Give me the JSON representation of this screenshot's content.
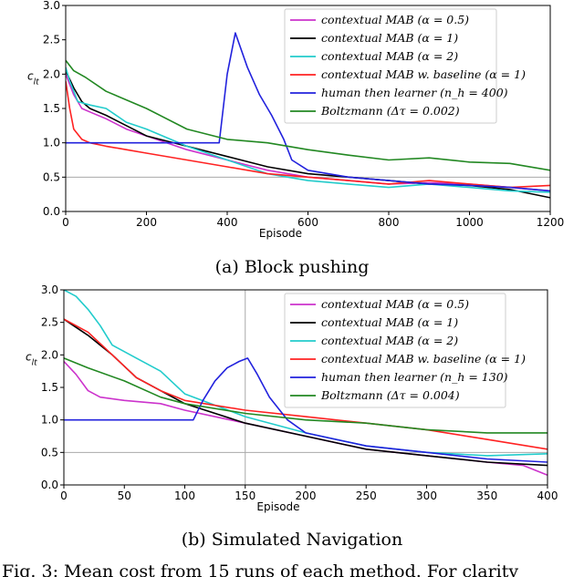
{
  "figure_caption": "Fig. 3: Mean cost from 15 runs of each method. For clarity",
  "chart_data": [
    {
      "type": "line",
      "caption": "(a) Block pushing",
      "xlabel": "Episode",
      "ylabel": "c",
      "ylabel_sub": "lt",
      "xlim": [
        0,
        1200
      ],
      "ylim": [
        0,
        3.0
      ],
      "xticks": [
        0,
        200,
        400,
        600,
        800,
        1000,
        1200
      ],
      "yticks": [
        0.0,
        0.5,
        1.0,
        1.5,
        2.0,
        2.5,
        3.0
      ],
      "xtick_labels": [
        "0",
        "200",
        "400",
        "600",
        "800",
        "1000",
        "1200"
      ],
      "ytick_labels": [
        "0.0",
        "0.5",
        "1.0",
        "1.5",
        "2.0",
        "2.5",
        "3.0"
      ],
      "legend_position": "top-right",
      "series": [
        {
          "name": "contextual MAB (α = 0.5)",
          "color": "#cc33cc",
          "x": [
            0,
            20,
            40,
            60,
            100,
            150,
            200,
            300,
            400,
            500,
            600,
            700,
            800,
            900,
            1000,
            1100,
            1200
          ],
          "y": [
            2.0,
            1.7,
            1.5,
            1.45,
            1.35,
            1.2,
            1.1,
            0.9,
            0.75,
            0.6,
            0.5,
            0.45,
            0.4,
            0.42,
            0.4,
            0.35,
            0.3
          ]
        },
        {
          "name": "contextual MAB (α = 1)",
          "color": "#000000",
          "x": [
            0,
            20,
            40,
            60,
            100,
            150,
            200,
            300,
            400,
            500,
            600,
            700,
            800,
            900,
            1000,
            1100,
            1200
          ],
          "y": [
            2.05,
            1.8,
            1.6,
            1.5,
            1.4,
            1.25,
            1.1,
            0.95,
            0.8,
            0.65,
            0.55,
            0.5,
            0.45,
            0.4,
            0.38,
            0.32,
            0.2
          ]
        },
        {
          "name": "contextual MAB (α = 2)",
          "color": "#22cccc",
          "x": [
            0,
            10,
            30,
            60,
            100,
            150,
            200,
            300,
            400,
            500,
            600,
            700,
            800,
            900,
            1000,
            1100,
            1200
          ],
          "y": [
            2.1,
            1.9,
            1.6,
            1.55,
            1.5,
            1.3,
            1.2,
            0.95,
            0.75,
            0.55,
            0.45,
            0.4,
            0.35,
            0.4,
            0.35,
            0.3,
            0.28
          ]
        },
        {
          "name": "contextual MAB w. baseline (α = 1)",
          "color": "#ff2222",
          "x": [
            0,
            10,
            20,
            40,
            60,
            100,
            150,
            200,
            300,
            400,
            500,
            600,
            700,
            800,
            900,
            1000,
            1100,
            1200
          ],
          "y": [
            1.9,
            1.5,
            1.2,
            1.05,
            1.0,
            0.95,
            0.9,
            0.85,
            0.75,
            0.65,
            0.55,
            0.5,
            0.45,
            0.4,
            0.45,
            0.4,
            0.35,
            0.38
          ]
        },
        {
          "name": "human then learner (n_h = 400)",
          "color": "#2222dd",
          "x": [
            0,
            380,
            400,
            420,
            450,
            480,
            510,
            540,
            560,
            600,
            700,
            800,
            900,
            1000,
            1100,
            1200
          ],
          "y": [
            1.0,
            1.0,
            2.0,
            2.6,
            2.1,
            1.7,
            1.4,
            1.05,
            0.75,
            0.6,
            0.5,
            0.45,
            0.4,
            0.38,
            0.35,
            0.3
          ]
        },
        {
          "name": "Boltzmann (Δτ = 0.002)",
          "color": "#228822",
          "x": [
            0,
            20,
            50,
            100,
            200,
            300,
            400,
            500,
            600,
            700,
            800,
            900,
            1000,
            1100,
            1200
          ],
          "y": [
            2.2,
            2.05,
            1.95,
            1.75,
            1.5,
            1.2,
            1.05,
            1.0,
            0.9,
            0.82,
            0.75,
            0.78,
            0.72,
            0.7,
            0.6
          ]
        }
      ]
    },
    {
      "type": "line",
      "caption": "(b) Simulated Navigation",
      "xlabel": "Episode",
      "ylabel": "c",
      "ylabel_sub": "lt",
      "xlim": [
        0,
        400
      ],
      "ylim": [
        0,
        3.0
      ],
      "xticks": [
        0,
        50,
        100,
        150,
        200,
        250,
        300,
        350,
        400
      ],
      "yticks": [
        0.0,
        0.5,
        1.0,
        1.5,
        2.0,
        2.5,
        3.0
      ],
      "xtick_labels": [
        "0",
        "50",
        "100",
        "150",
        "200",
        "250",
        "300",
        "350",
        "400"
      ],
      "ytick_labels": [
        "0.0",
        "0.5",
        "1.0",
        "1.5",
        "2.0",
        "2.5",
        "3.0"
      ],
      "legend_position": "top-right",
      "series": [
        {
          "name": "contextual MAB (α = 0.5)",
          "color": "#cc33cc",
          "x": [
            0,
            10,
            20,
            30,
            50,
            80,
            100,
            150,
            200,
            250,
            300,
            350,
            380,
            400
          ],
          "y": [
            1.9,
            1.7,
            1.45,
            1.35,
            1.3,
            1.25,
            1.15,
            0.95,
            0.75,
            0.55,
            0.45,
            0.35,
            0.3,
            0.15
          ]
        },
        {
          "name": "contextual MAB (α = 1)",
          "color": "#000000",
          "x": [
            0,
            20,
            40,
            60,
            80,
            100,
            150,
            200,
            250,
            300,
            350,
            400
          ],
          "y": [
            2.55,
            2.3,
            2.0,
            1.65,
            1.45,
            1.25,
            0.95,
            0.75,
            0.55,
            0.45,
            0.35,
            0.3
          ]
        },
        {
          "name": "contextual MAB (α = 2)",
          "color": "#22cccc",
          "x": [
            0,
            10,
            20,
            30,
            40,
            60,
            80,
            100,
            150,
            200,
            250,
            300,
            350,
            400
          ],
          "y": [
            3.0,
            2.9,
            2.7,
            2.45,
            2.15,
            1.95,
            1.75,
            1.4,
            1.05,
            0.8,
            0.6,
            0.5,
            0.45,
            0.48
          ]
        },
        {
          "name": "contextual MAB w. baseline (α = 1)",
          "color": "#ff2222",
          "x": [
            0,
            20,
            40,
            60,
            80,
            100,
            150,
            200,
            250,
            300,
            350,
            400
          ],
          "y": [
            2.55,
            2.35,
            2.0,
            1.65,
            1.45,
            1.3,
            1.15,
            1.05,
            0.95,
            0.85,
            0.7,
            0.55
          ]
        },
        {
          "name": "human then learner (n_h = 130)",
          "color": "#2222dd",
          "x": [
            0,
            107,
            115,
            125,
            135,
            145,
            152,
            160,
            170,
            185,
            200,
            250,
            300,
            350,
            400
          ],
          "y": [
            1.0,
            1.0,
            1.3,
            1.6,
            1.8,
            1.9,
            1.95,
            1.7,
            1.35,
            1.0,
            0.8,
            0.6,
            0.5,
            0.4,
            0.35
          ]
        },
        {
          "name": "Boltzmann (Δτ = 0.004)",
          "color": "#228822",
          "x": [
            0,
            20,
            50,
            80,
            100,
            150,
            200,
            250,
            300,
            350,
            400
          ],
          "y": [
            1.95,
            1.8,
            1.6,
            1.35,
            1.25,
            1.1,
            1.0,
            0.95,
            0.85,
            0.8,
            0.8
          ]
        }
      ]
    }
  ]
}
